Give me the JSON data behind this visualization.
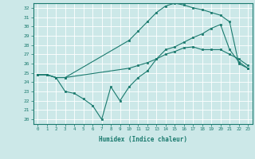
{
  "xlabel": "Humidex (Indice chaleur)",
  "bg_color": "#cce8e8",
  "line_color": "#1a7a6e",
  "grid_color": "#ffffff",
  "curve1_x": [
    0,
    1,
    2,
    3,
    10,
    11,
    12,
    13,
    14,
    15,
    16,
    17,
    18,
    19,
    20,
    21,
    22,
    23
  ],
  "curve1_y": [
    24.8,
    24.8,
    24.5,
    24.5,
    25.5,
    25.8,
    26.1,
    26.5,
    27.0,
    27.3,
    27.7,
    27.8,
    27.5,
    27.5,
    27.5,
    27.0,
    26.5,
    25.8
  ],
  "curve2_x": [
    0,
    1,
    2,
    3,
    10,
    11,
    12,
    13,
    14,
    15,
    16,
    17,
    18,
    19,
    20,
    21,
    22,
    23
  ],
  "curve2_y": [
    24.8,
    24.8,
    24.5,
    24.5,
    28.5,
    29.5,
    30.5,
    31.5,
    32.2,
    32.5,
    32.3,
    32.0,
    31.8,
    31.5,
    31.2,
    30.5,
    26.0,
    25.5
  ],
  "curve3_x": [
    0,
    1,
    2,
    3,
    4,
    5,
    6,
    7,
    8,
    9,
    10,
    11,
    12,
    13,
    14,
    15,
    16,
    17,
    18,
    19,
    20,
    21,
    22,
    23
  ],
  "curve3_y": [
    24.8,
    24.8,
    24.5,
    23.0,
    22.8,
    22.2,
    21.5,
    20.0,
    23.5,
    22.0,
    23.5,
    24.5,
    25.2,
    26.5,
    27.5,
    27.8,
    28.3,
    28.8,
    29.2,
    29.8,
    30.2,
    27.5,
    26.2,
    25.5
  ],
  "xlim": [
    -0.5,
    23.5
  ],
  "ylim": [
    19.5,
    32.5
  ],
  "xticks": [
    0,
    1,
    2,
    3,
    4,
    5,
    6,
    7,
    8,
    9,
    10,
    11,
    12,
    13,
    14,
    15,
    16,
    17,
    18,
    19,
    20,
    21,
    22,
    23
  ],
  "yticks": [
    20,
    21,
    22,
    23,
    24,
    25,
    26,
    27,
    28,
    29,
    30,
    31,
    32
  ]
}
